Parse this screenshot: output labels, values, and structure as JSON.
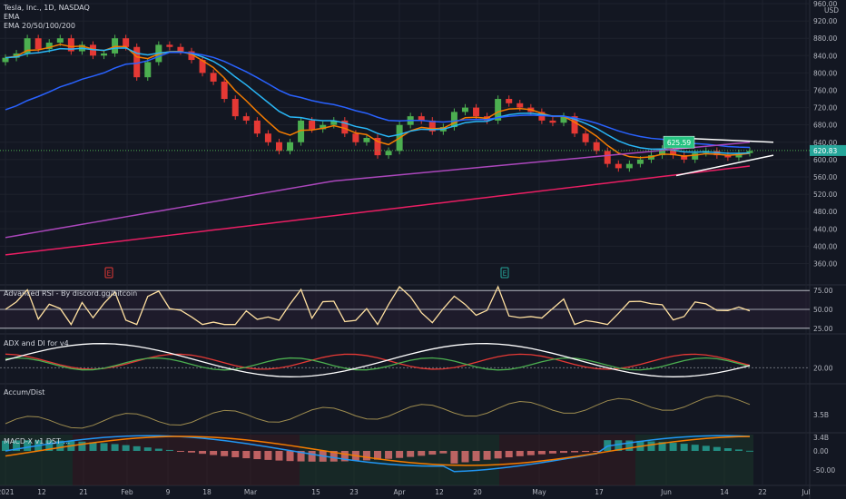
{
  "header": {
    "symbol_line": "Tesla, Inc., 1D, NASDAQ",
    "indicator_1": "EMA",
    "indicator_2": "EMA 20/50/100/200"
  },
  "currency": "USD",
  "price_tag_high": "625.59",
  "price_tag_last": "620.83",
  "panes": {
    "rsi_title": "Advanced RSI - By discord.gg/bitcoin",
    "adx_title": "ADX and DI for v4",
    "accum_title": "Accum/Dist",
    "macd_title": "MACD-X v1 DST ..."
  },
  "event_markers": [
    "E",
    "E"
  ],
  "colors": {
    "background": "#131722",
    "up": "#26a69a",
    "up_candle": "#4caf50",
    "down_candle": "#e53935",
    "ema20": "#f57c00",
    "ema50": "#29b6f6",
    "ema100": "#2962ff",
    "ema_purple": "#ab47bc",
    "ema200": "#e91e63",
    "rsi": "#ffe0a0",
    "adx": "#ffffff",
    "di_plus": "#4caf50",
    "di_minus": "#e53935",
    "macd": "#2196f3",
    "signal": "#f57c00"
  },
  "chart_data": [
    {
      "type": "candlestick",
      "pane": "price",
      "y_ticks": [
        "960.00",
        "920.00",
        "880.00",
        "840.00",
        "800.00",
        "760.00",
        "720.00",
        "680.00",
        "640.00",
        "600.00",
        "560.00",
        "520.00",
        "480.00",
        "440.00",
        "400.00",
        "360.00"
      ],
      "ylim": [
        340,
        960
      ],
      "x_ticks": [
        "2021",
        "12",
        "21",
        "Feb",
        "9",
        "18",
        "Mar",
        "15",
        "23",
        "Apr",
        "12",
        "20",
        "May",
        "17",
        "Jun",
        "14",
        "22",
        "Jul"
      ],
      "close_approx": [
        835,
        845,
        880,
        855,
        870,
        880,
        850,
        865,
        840,
        845,
        880,
        860,
        790,
        825,
        865,
        860,
        850,
        830,
        800,
        780,
        740,
        700,
        690,
        660,
        640,
        620,
        640,
        690,
        670,
        680,
        690,
        660,
        640,
        650,
        610,
        620,
        680,
        700,
        690,
        665,
        675,
        710,
        720,
        700,
        690,
        740,
        730,
        720,
        710,
        690,
        685,
        700,
        660,
        640,
        620,
        590,
        580,
        590,
        600,
        610,
        625,
        610,
        600,
        615,
        620,
        610,
        605,
        615,
        620
      ],
      "overlays": [
        "EMA 20",
        "EMA 50",
        "EMA 100",
        "EMA 200"
      ],
      "annotations": [
        "625.59",
        "620.83"
      ]
    },
    {
      "type": "line",
      "pane": "rsi",
      "y_ticks": [
        "75.00",
        "50.00",
        "25.00"
      ],
      "ylim": [
        20,
        80
      ]
    },
    {
      "type": "line",
      "pane": "adx",
      "y_ticks": [
        "20.00"
      ],
      "series": [
        "ADX",
        "+DI",
        "-DI"
      ]
    },
    {
      "type": "line",
      "pane": "accum_dist",
      "y_ticks": [
        "3.5B",
        "3.4B"
      ]
    },
    {
      "type": "bar",
      "pane": "macd",
      "y_ticks": [
        "0.00",
        "-50.00"
      ],
      "series": [
        "MACD",
        "Signal",
        "Histogram"
      ]
    }
  ]
}
